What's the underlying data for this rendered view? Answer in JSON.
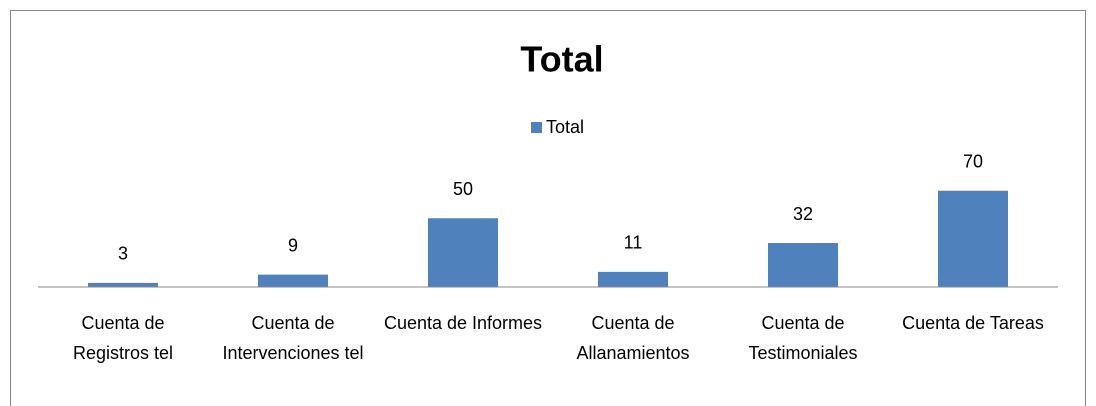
{
  "chart_data": {
    "type": "bar",
    "title": "Total",
    "categories": [
      "Cuenta de Registros tel",
      "Cuenta de Intervenciones tel",
      "Cuenta de Informes",
      "Cuenta de Allanamientos",
      "Cuenta de Testimoniales",
      "Cuenta de Tareas"
    ],
    "series": [
      {
        "name": "Total",
        "color": "#4f81bd",
        "values": [
          3,
          9,
          50,
          11,
          32,
          70
        ]
      }
    ],
    "ylim": [
      0,
      80
    ],
    "legend": "top"
  }
}
